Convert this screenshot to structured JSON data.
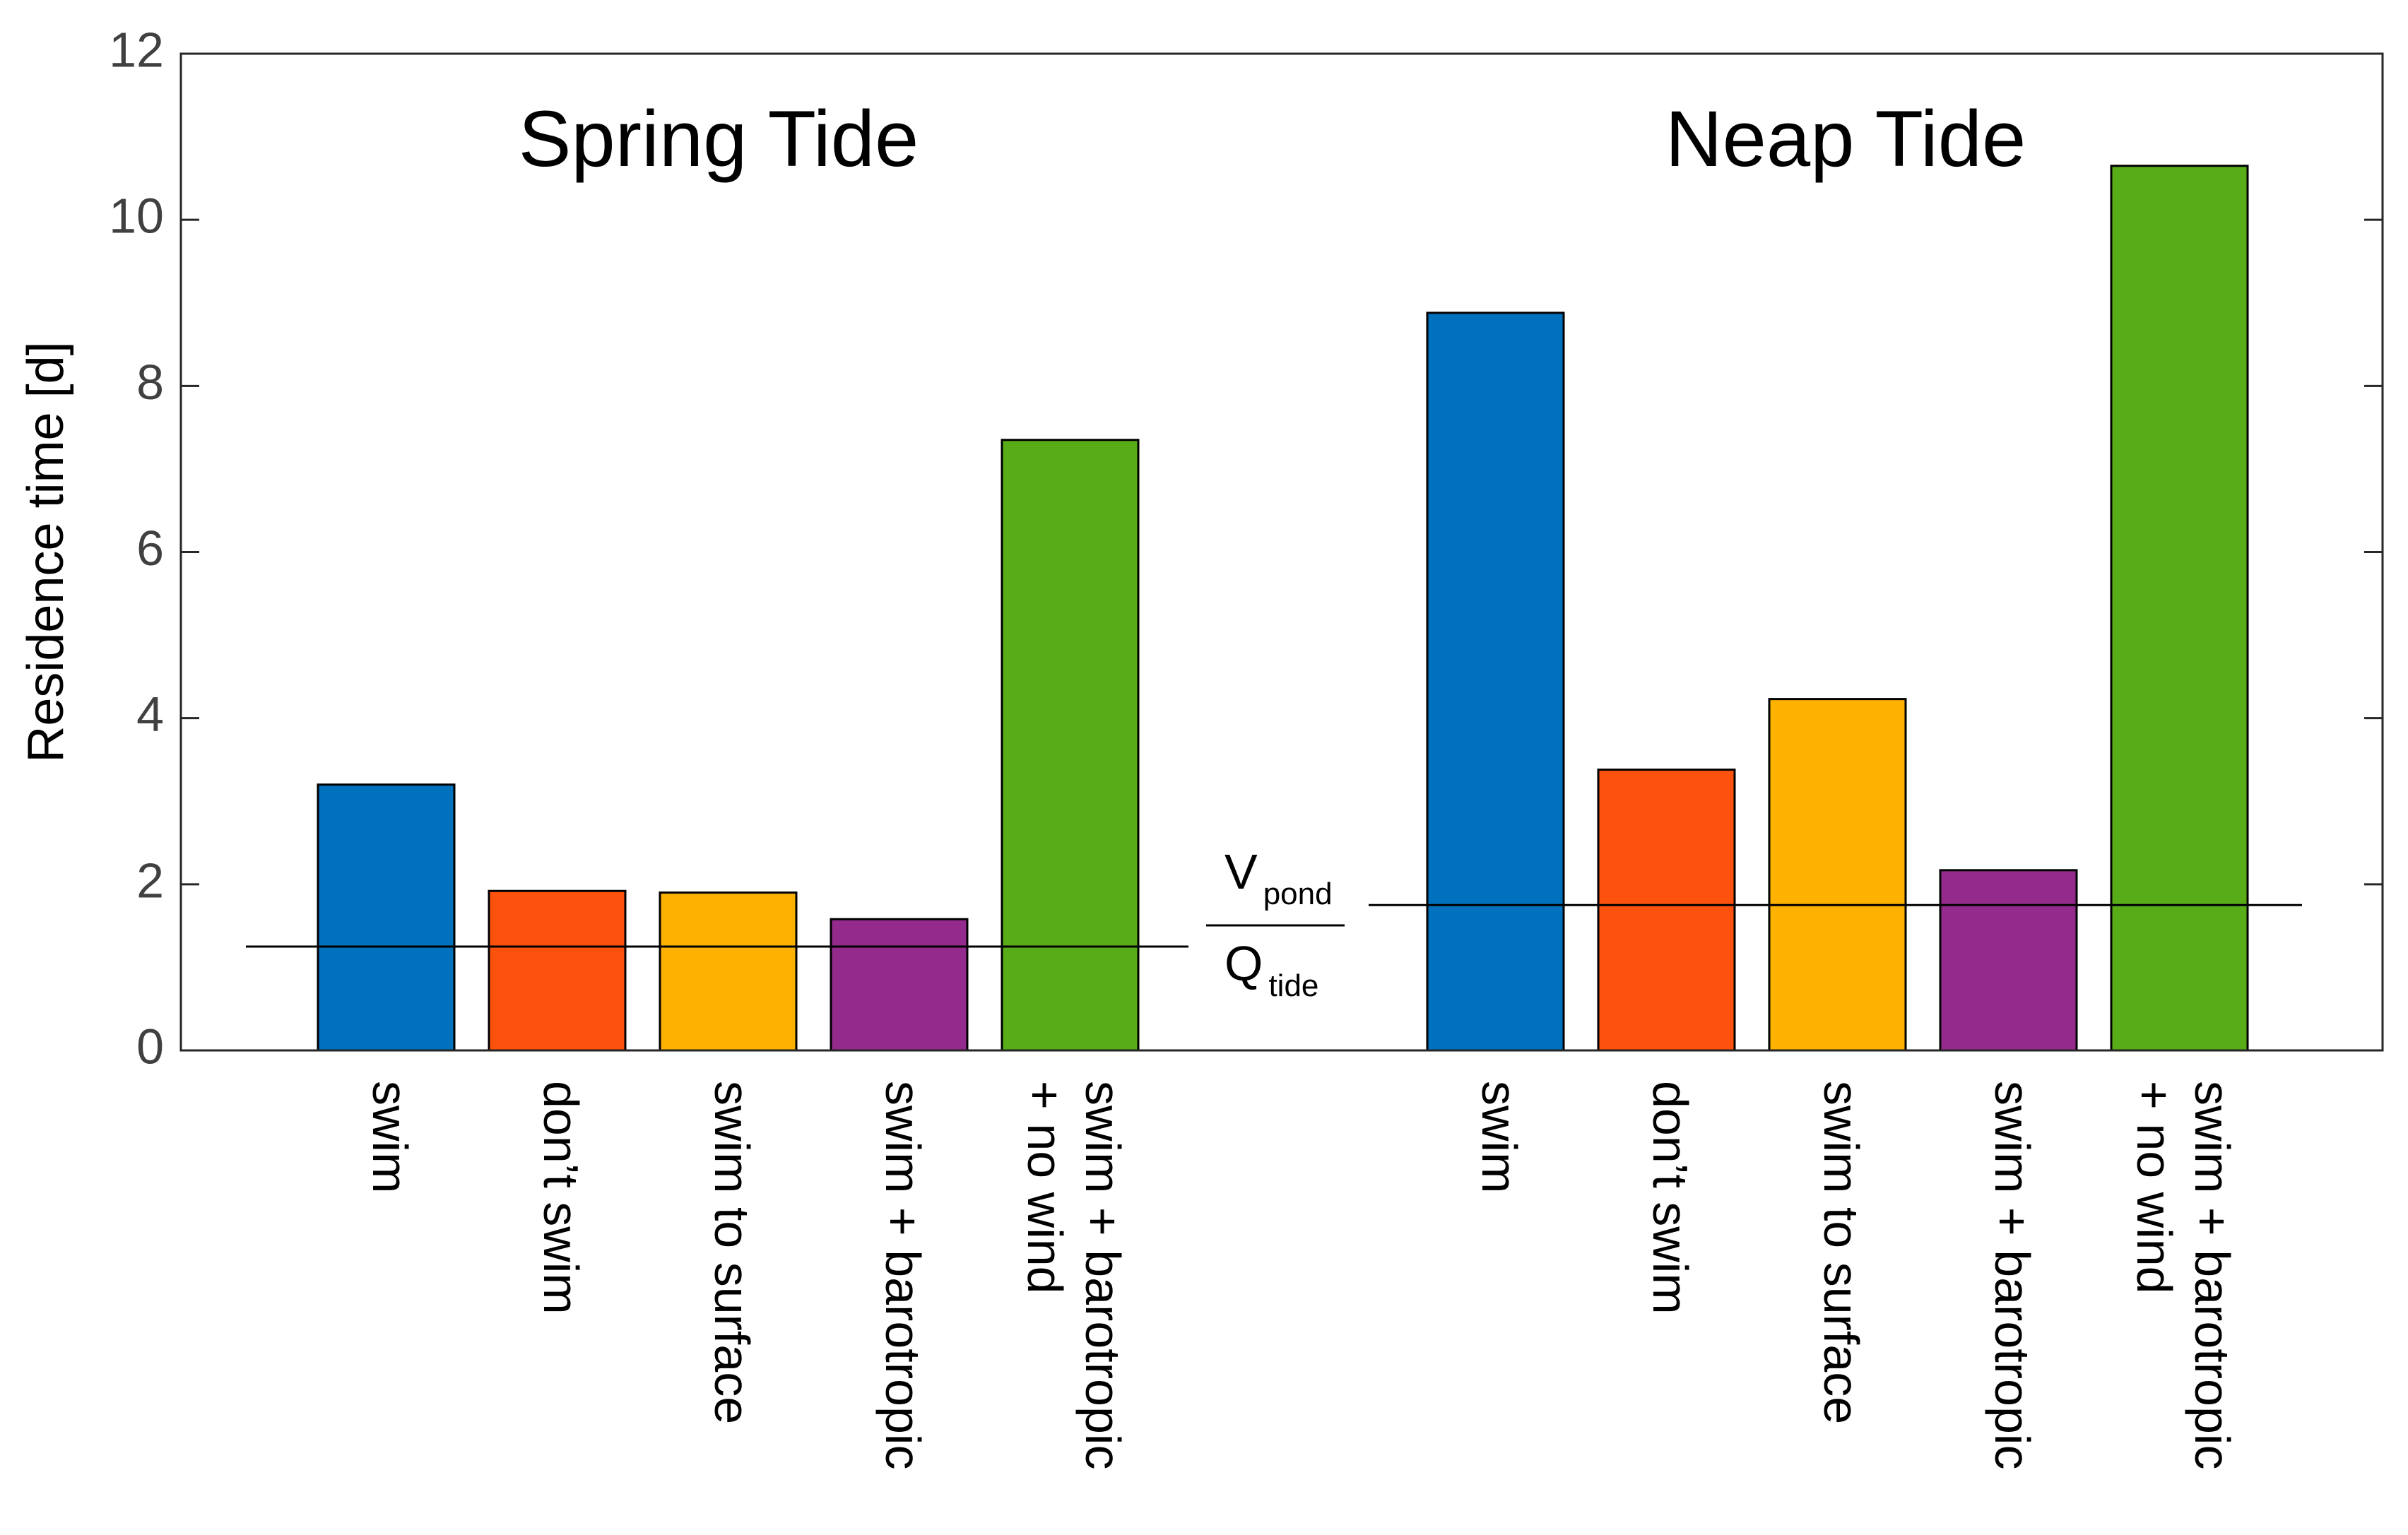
{
  "chart_data": {
    "type": "bar",
    "ylabel": "Residence time [d]",
    "ylim": [
      0,
      12
    ],
    "yticks": [
      "0",
      "2",
      "4",
      "6",
      "8",
      "10",
      "12"
    ],
    "grid": false,
    "groups": [
      {
        "title": "Spring Tide",
        "reference_line": 1.25,
        "bars": [
          {
            "label": [
              "swim"
            ],
            "value": 3.2,
            "color": "#0072BD"
          },
          {
            "label": [
              "don’t swim"
            ],
            "value": 1.92,
            "color": "#FC520E"
          },
          {
            "label": [
              "swim to surface"
            ],
            "value": 1.9,
            "color": "#FDB100"
          },
          {
            "label": [
              "swim + barotropic"
            ],
            "value": 1.58,
            "color": "#942A8C"
          },
          {
            "label": [
              "swim + barotropic",
              "+ no wind"
            ],
            "value": 7.35,
            "color": "#58AC18"
          }
        ]
      },
      {
        "title": "Neap Tide",
        "reference_line": 1.75,
        "bars": [
          {
            "label": [
              "swim"
            ],
            "value": 8.88,
            "color": "#0072BD"
          },
          {
            "label": [
              "don’t swim"
            ],
            "value": 3.38,
            "color": "#FC520E"
          },
          {
            "label": [
              "swim to surface"
            ],
            "value": 4.23,
            "color": "#FDB100"
          },
          {
            "label": [
              "swim + barotropic"
            ],
            "value": 2.17,
            "color": "#942A8C"
          },
          {
            "label": [
              "swim + barotropic",
              "+ no wind"
            ],
            "value": 10.65,
            "color": "#58AC18"
          }
        ]
      }
    ],
    "reference_annotation": {
      "numerator": "V",
      "numerator_sub": "pond",
      "denominator": "Q",
      "denominator_sub": "tide"
    }
  }
}
